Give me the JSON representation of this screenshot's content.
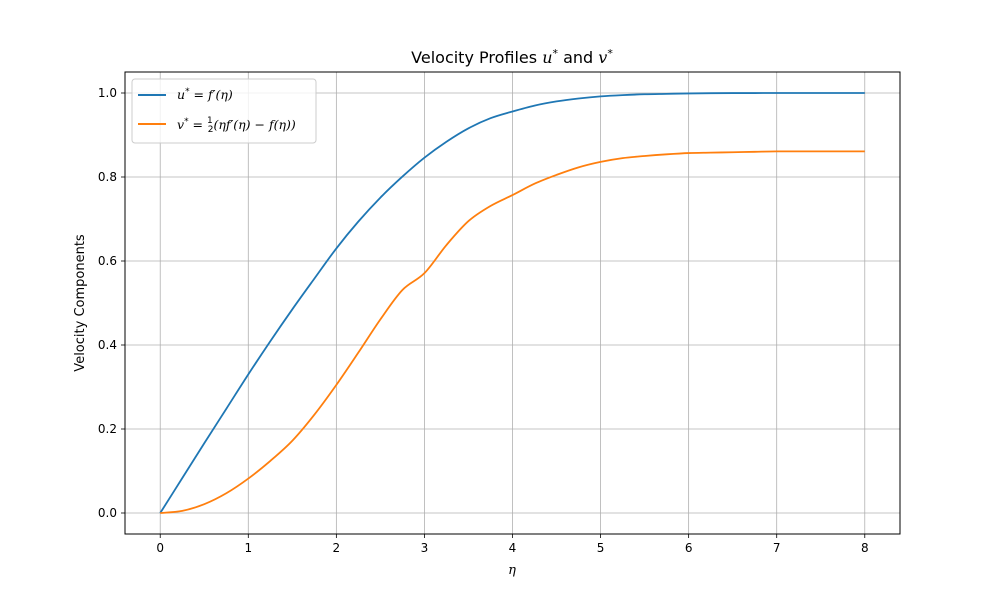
{
  "chart_data": {
    "type": "line",
    "title": {
      "prefix": "Velocity Profiles ",
      "u": "u",
      "star": "*",
      "and": " and ",
      "v": "v"
    },
    "xlabel": "η",
    "ylabel": "Velocity Components",
    "xlim": [
      -0.4,
      8.4
    ],
    "ylim": [
      -0.05,
      1.05
    ],
    "xticks": [
      0,
      1,
      2,
      3,
      4,
      5,
      6,
      7,
      8
    ],
    "yticks": [
      0.0,
      0.2,
      0.4,
      0.6,
      0.8,
      1.0
    ],
    "xtick_labels": [
      "0",
      "1",
      "2",
      "3",
      "4",
      "5",
      "6",
      "7",
      "8"
    ],
    "ytick_labels": [
      "0.0",
      "0.2",
      "0.4",
      "0.6",
      "0.8",
      "1.0"
    ],
    "grid": true,
    "legend_position": "top-left",
    "x": [
      0,
      0.25,
      0.5,
      0.75,
      1,
      1.25,
      1.5,
      1.75,
      2,
      2.25,
      2.5,
      2.75,
      3,
      3.25,
      3.5,
      3.75,
      4,
      4.25,
      4.5,
      4.75,
      5,
      5.25,
      5.5,
      5.75,
      6,
      6.25,
      6.5,
      6.75,
      7,
      7.25,
      7.5,
      7.75,
      8
    ],
    "series": [
      {
        "name": "u* = f′(η)",
        "legend": {
          "lhs": "u",
          "star": "*",
          "eq": " = ",
          "rhs": "f′(η)"
        },
        "color": "#1f77b4",
        "values": [
          0,
          0.083,
          0.166,
          0.248,
          0.33,
          0.409,
          0.485,
          0.558,
          0.63,
          0.694,
          0.751,
          0.801,
          0.846,
          0.884,
          0.916,
          0.94,
          0.956,
          0.97,
          0.98,
          0.987,
          0.992,
          0.995,
          0.997,
          0.998,
          0.999,
          0.9995,
          0.9998,
          0.9999,
          1.0,
          1.0,
          1.0,
          1.0,
          1.0
        ]
      },
      {
        "name": "v* = ½(ηf′(η) − f(η))",
        "legend": {
          "lhs": "v",
          "star": "*",
          "eq": " = ",
          "num": "1",
          "den": "2",
          "rhs": "(ηf′(η) − f(η))"
        },
        "color": "#ff7f0e",
        "values": [
          0,
          0.005,
          0.021,
          0.047,
          0.082,
          0.124,
          0.172,
          0.234,
          0.305,
          0.382,
          0.461,
          0.531,
          0.571,
          0.638,
          0.695,
          0.731,
          0.757,
          0.784,
          0.805,
          0.823,
          0.836,
          0.845,
          0.85,
          0.854,
          0.857,
          0.858,
          0.859,
          0.86,
          0.861,
          0.861,
          0.861,
          0.861,
          0.861
        ]
      }
    ]
  }
}
